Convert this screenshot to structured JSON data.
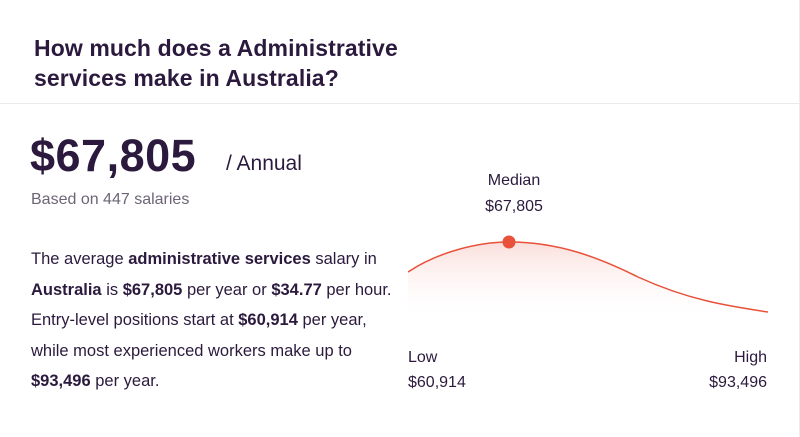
{
  "header": {
    "title": "How much does a Administrative services make in Australia?"
  },
  "salary": {
    "amount": "$67,805",
    "period": "/ Annual",
    "based_on": "Based on 447 salaries"
  },
  "description": {
    "p1": "The average ",
    "job": "administrative services",
    "p2": " salary in ",
    "location": "Australia",
    "p3": " is ",
    "yearly": "$67,805",
    "p4": " per year or ",
    "hourly": "$34.77",
    "p5": " per hour. Entry-level positions start at ",
    "entry": "$60,914",
    "p6": " per year, while most experienced workers make up to ",
    "top": "$93,496",
    "p7": " per year."
  },
  "distribution": {
    "median_label": "Median",
    "median_value": "$67,805",
    "low_label": "Low",
    "low_value": "$60,914",
    "high_label": "High",
    "high_value": "$93,496",
    "curve_color": "#e8513a",
    "marker_color": "#e8513a"
  }
}
